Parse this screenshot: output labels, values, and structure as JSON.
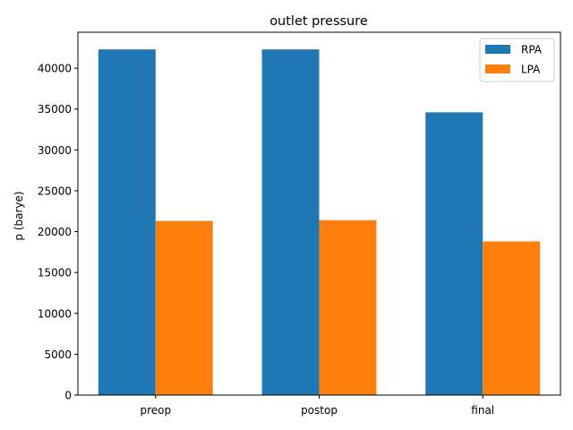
{
  "chart_data": {
    "type": "bar",
    "title": "outlet pressure",
    "xlabel": "",
    "ylabel": "p (barye)",
    "categories": [
      "preop",
      "postop",
      "final"
    ],
    "series": [
      {
        "name": "RPA",
        "color": "#1f77b4",
        "values": [
          42300,
          42300,
          34600
        ]
      },
      {
        "name": "LPA",
        "color": "#ff7f0e",
        "values": [
          21300,
          21400,
          18800
        ]
      }
    ],
    "ylim": [
      0,
      44400
    ],
    "yticks": [
      0,
      5000,
      10000,
      15000,
      20000,
      25000,
      30000,
      35000,
      40000
    ],
    "grid": false,
    "legend_position": "top-right"
  }
}
